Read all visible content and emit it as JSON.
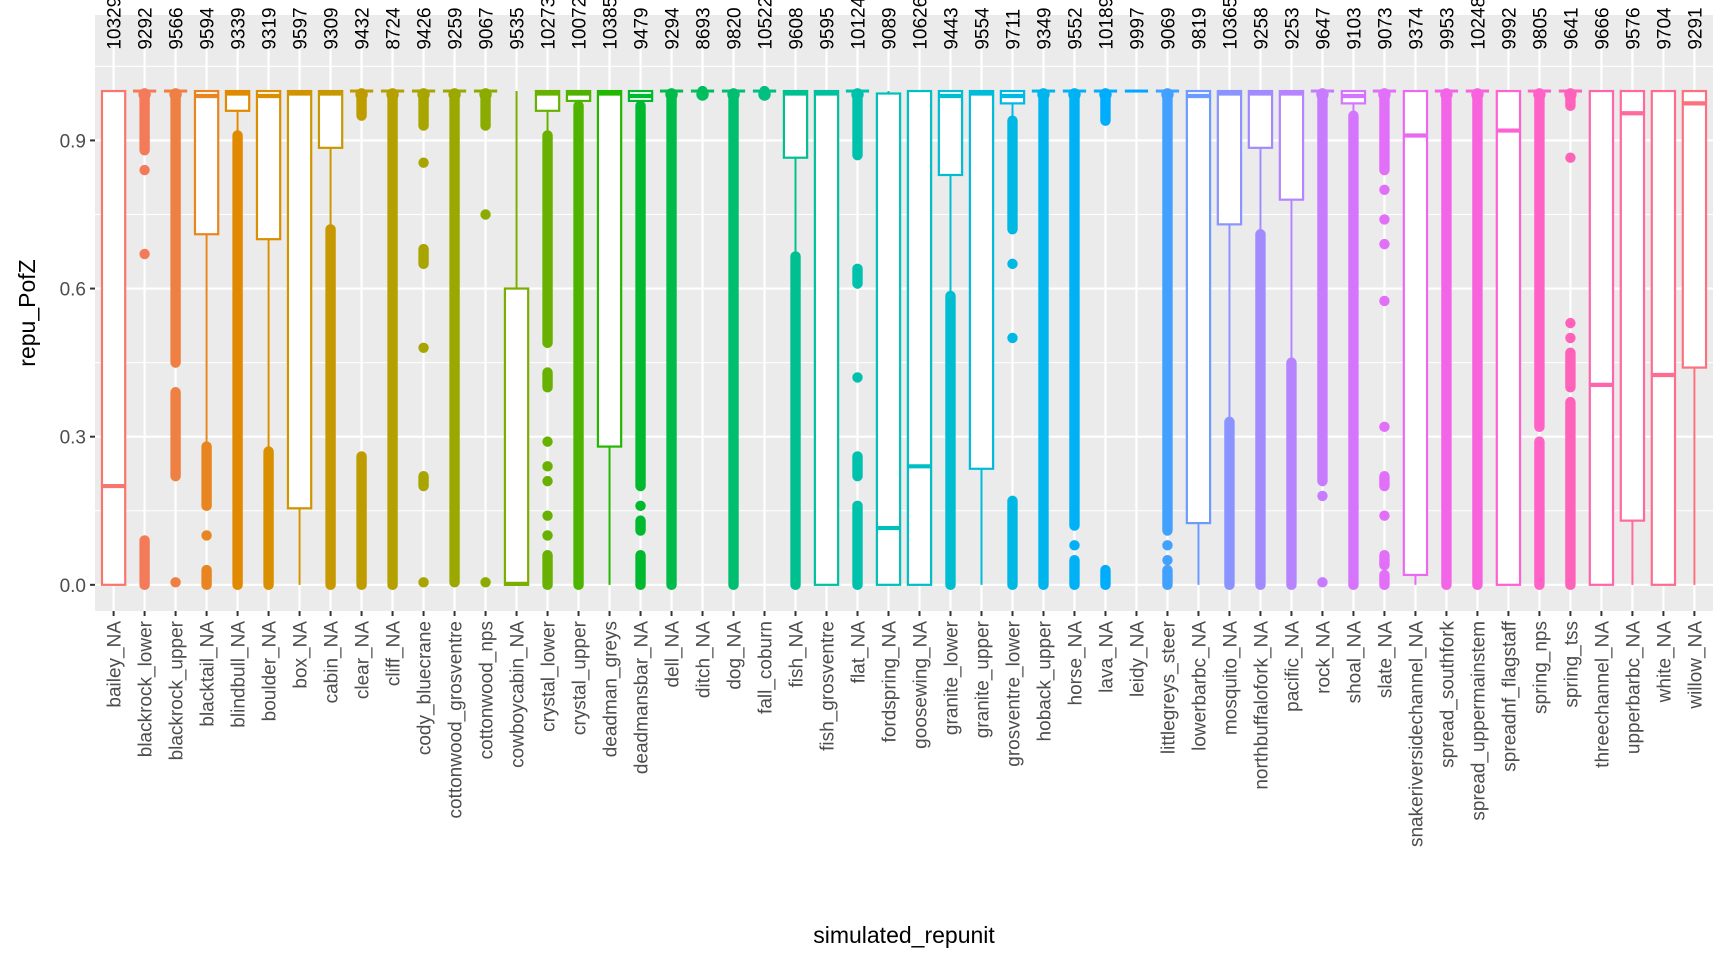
{
  "chart_data": {
    "type": "boxplot",
    "title": "",
    "xlabel": "simulated_repunit",
    "ylabel": "repu_PofZ",
    "ylim": [
      -0.053,
      1.154
    ],
    "yticks": [
      0.0,
      0.3,
      0.6,
      0.9
    ],
    "ytick_labels": [
      "0.0",
      "0.3",
      "0.6",
      "0.9"
    ],
    "y_minor_gridlines": [
      0.15,
      0.45,
      0.75,
      1.05
    ],
    "grid": true,
    "legend": "none",
    "panel_background": "#EBEBEB",
    "gridline_color": "#FFFFFF",
    "count_label_y": 1.1,
    "palette": "ggplot hue (h 15-375, c 100, l 65)",
    "categories": [
      {
        "name": "bailey_NA",
        "n": "10329",
        "box": [
          0.0,
          0.0,
          0.2,
          1.0,
          1.0
        ],
        "bands": [],
        "points": []
      },
      {
        "name": "blackrock_lower",
        "n": "9292",
        "box": [
          0.995,
          0.995,
          1.0,
          1.0,
          1.0
        ],
        "bands": [
          [
            0.88,
            0.995
          ],
          [
            0.0,
            0.09
          ]
        ],
        "points": [
          0.84,
          0.67
        ]
      },
      {
        "name": "blackrock_upper",
        "n": "9566",
        "box": [
          0.995,
          0.995,
          1.0,
          1.0,
          1.0
        ],
        "bands": [
          [
            0.45,
            0.995
          ],
          [
            0.22,
            0.39
          ]
        ],
        "points": [
          0.005
        ]
      },
      {
        "name": "blacktail_NA",
        "n": "9594",
        "box": [
          0.28,
          0.71,
          0.99,
          1.0,
          1.0
        ],
        "bands": [
          [
            0.16,
            0.28
          ],
          [
            0.0,
            0.03
          ]
        ],
        "points": [
          0.1
        ]
      },
      {
        "name": "blindbull_NA",
        "n": "9339",
        "box": [
          0.91,
          0.96,
          0.995,
          1.0,
          1.0
        ],
        "bands": [
          [
            0.0,
            0.91
          ]
        ],
        "points": []
      },
      {
        "name": "boulder_NA",
        "n": "9319",
        "box": [
          0.27,
          0.7,
          0.99,
          1.0,
          1.0
        ],
        "bands": [
          [
            0.0,
            0.27
          ]
        ],
        "points": []
      },
      {
        "name": "box_NA",
        "n": "9597",
        "box": [
          0.0,
          0.155,
          0.995,
          1.0,
          1.0
        ],
        "bands": [],
        "points": []
      },
      {
        "name": "cabin_NA",
        "n": "9309",
        "box": [
          0.72,
          0.885,
          0.995,
          1.0,
          1.0
        ],
        "bands": [
          [
            0.0,
            0.72
          ]
        ],
        "points": []
      },
      {
        "name": "clear_NA",
        "n": "9432",
        "box": [
          0.995,
          0.995,
          1.0,
          1.0,
          1.0
        ],
        "bands": [
          [
            0.95,
            0.995
          ],
          [
            0.0,
            0.26
          ]
        ],
        "points": []
      },
      {
        "name": "cliff_NA",
        "n": "8724",
        "box": [
          0.995,
          0.995,
          1.0,
          1.0,
          1.0
        ],
        "bands": [
          [
            0.0,
            0.995
          ]
        ],
        "points": []
      },
      {
        "name": "cody_bluecrane",
        "n": "9426",
        "box": [
          0.995,
          0.995,
          1.0,
          1.0,
          1.0
        ],
        "bands": [
          [
            0.93,
            0.995
          ],
          [
            0.2,
            0.22
          ],
          [
            0.65,
            0.68
          ]
        ],
        "points": [
          0.855,
          0.48,
          0.005
        ]
      },
      {
        "name": "cottonwood_grosventre",
        "n": "9259",
        "box": [
          0.995,
          0.995,
          1.0,
          1.0,
          1.0
        ],
        "bands": [
          [
            0.005,
            0.995
          ]
        ],
        "points": []
      },
      {
        "name": "cottonwood_nps",
        "n": "9067",
        "box": [
          0.995,
          0.995,
          1.0,
          1.0,
          1.0
        ],
        "bands": [
          [
            0.93,
            0.995
          ]
        ],
        "points": [
          0.75,
          0.005
        ]
      },
      {
        "name": "cowboycabin_NA",
        "n": "9535",
        "box": [
          0.0,
          0.0,
          0.002,
          0.6,
          1.0
        ],
        "bands": [],
        "points": []
      },
      {
        "name": "crystal_lower",
        "n": "10273",
        "box": [
          0.91,
          0.96,
          0.995,
          1.0,
          1.0
        ],
        "bands": [
          [
            0.49,
            0.91
          ],
          [
            0.0,
            0.06
          ],
          [
            0.4,
            0.43
          ]
        ],
        "points": [
          0.29,
          0.14,
          0.21,
          0.24,
          0.1
        ]
      },
      {
        "name": "crystal_upper",
        "n": "10072",
        "box": [
          0.97,
          0.98,
          0.995,
          1.0,
          1.0
        ],
        "bands": [
          [
            0.0,
            0.97
          ]
        ],
        "points": []
      },
      {
        "name": "deadman_greys",
        "n": "10385",
        "box": [
          0.0,
          0.28,
          0.995,
          1.0,
          1.0
        ],
        "bands": [],
        "points": []
      },
      {
        "name": "deadmansbar_NA",
        "n": "9479",
        "box": [
          0.97,
          0.98,
          0.99,
          1.0,
          1.0
        ],
        "bands": [
          [
            0.2,
            0.97
          ],
          [
            0.0,
            0.06
          ],
          [
            0.11,
            0.13
          ]
        ],
        "points": [
          0.16
        ]
      },
      {
        "name": "dell_NA",
        "n": "9294",
        "box": [
          0.995,
          0.995,
          1.0,
          1.0,
          1.0
        ],
        "bands": [
          [
            0.0,
            0.995
          ]
        ],
        "points": []
      },
      {
        "name": "ditch_NA",
        "n": "8693",
        "box": [
          0.995,
          0.995,
          1.0,
          1.0,
          1.0
        ],
        "bands": [
          [
            0.995,
            1.0
          ]
        ],
        "points": []
      },
      {
        "name": "dog_NA",
        "n": "9820",
        "box": [
          0.995,
          0.995,
          1.0,
          1.0,
          1.0
        ],
        "bands": [
          [
            0.0,
            0.995
          ]
        ],
        "points": []
      },
      {
        "name": "fall_coburn",
        "n": "10522",
        "box": [
          0.995,
          0.995,
          1.0,
          1.0,
          1.0
        ],
        "bands": [
          [
            0.995,
            1.0
          ]
        ],
        "points": []
      },
      {
        "name": "fish_NA",
        "n": "9608",
        "box": [
          0.665,
          0.865,
          0.995,
          1.0,
          1.0
        ],
        "bands": [
          [
            0.0,
            0.665
          ]
        ],
        "points": []
      },
      {
        "name": "fish_grosventre",
        "n": "9595",
        "box": [
          0.0,
          0.0,
          0.995,
          1.0,
          1.0
        ],
        "bands": [],
        "points": []
      },
      {
        "name": "flat_NA",
        "n": "10124",
        "box": [
          0.995,
          0.995,
          1.0,
          1.0,
          1.0
        ],
        "bands": [
          [
            0.87,
            0.995
          ],
          [
            0.0,
            0.16
          ],
          [
            0.61,
            0.64
          ],
          [
            0.22,
            0.26
          ]
        ],
        "points": [
          0.42
        ]
      },
      {
        "name": "fordspring_NA",
        "n": "9089",
        "box": [
          0.0,
          0.0,
          0.115,
          0.995,
          1.0
        ],
        "bands": [],
        "points": []
      },
      {
        "name": "goosewing_NA",
        "n": "10626",
        "box": [
          0.0,
          0.0,
          0.24,
          1.0,
          1.0
        ],
        "bands": [],
        "points": []
      },
      {
        "name": "granite_lower",
        "n": "9443",
        "box": [
          0.585,
          0.83,
          0.99,
          1.0,
          1.0
        ],
        "bands": [
          [
            0.0,
            0.585
          ]
        ],
        "points": []
      },
      {
        "name": "granite_upper",
        "n": "9554",
        "box": [
          0.0,
          0.235,
          0.995,
          1.0,
          1.0
        ],
        "bands": [],
        "points": []
      },
      {
        "name": "grosventre_lower",
        "n": "9711",
        "box": [
          0.94,
          0.975,
          0.99,
          1.0,
          1.0
        ],
        "bands": [
          [
            0.72,
            0.94
          ],
          [
            0.0,
            0.17
          ]
        ],
        "points": [
          0.65,
          0.5
        ]
      },
      {
        "name": "hoback_upper",
        "n": "9349",
        "box": [
          0.995,
          0.995,
          1.0,
          1.0,
          1.0
        ],
        "bands": [
          [
            0.0,
            0.995
          ]
        ],
        "points": []
      },
      {
        "name": "horse_NA",
        "n": "9552",
        "box": [
          0.995,
          0.995,
          1.0,
          1.0,
          1.0
        ],
        "bands": [
          [
            0.12,
            0.995
          ],
          [
            0.0,
            0.05
          ]
        ],
        "points": [
          0.08
        ]
      },
      {
        "name": "lava_NA",
        "n": "10189",
        "box": [
          0.995,
          0.995,
          1.0,
          1.0,
          1.0
        ],
        "bands": [
          [
            0.94,
            0.995
          ],
          [
            0.0,
            0.03
          ]
        ],
        "points": []
      },
      {
        "name": "leidy_NA",
        "n": "9997",
        "box": [
          1.0,
          1.0,
          1.0,
          1.0,
          1.0
        ],
        "bands": [],
        "points": []
      },
      {
        "name": "littlegreys_steer",
        "n": "9069",
        "box": [
          0.995,
          0.995,
          1.0,
          1.0,
          1.0
        ],
        "bands": [
          [
            0.11,
            0.995
          ],
          [
            0.0,
            0.03
          ]
        ],
        "points": [
          0.05,
          0.08
        ]
      },
      {
        "name": "lowerbarbc_NA",
        "n": "9819",
        "box": [
          0.0,
          0.125,
          0.99,
          1.0,
          1.0
        ],
        "bands": [],
        "points": []
      },
      {
        "name": "mosquito_NA",
        "n": "10365",
        "box": [
          0.33,
          0.73,
          0.995,
          1.0,
          1.0
        ],
        "bands": [
          [
            0.0,
            0.33
          ]
        ],
        "points": []
      },
      {
        "name": "northbuffalofork_NA",
        "n": "9258",
        "box": [
          0.71,
          0.885,
          0.995,
          1.0,
          1.0
        ],
        "bands": [
          [
            0.0,
            0.71
          ]
        ],
        "points": []
      },
      {
        "name": "pacific_NA",
        "n": "9253",
        "box": [
          0.45,
          0.78,
          0.995,
          1.0,
          1.0
        ],
        "bands": [
          [
            0.0,
            0.45
          ]
        ],
        "points": []
      },
      {
        "name": "rock_NA",
        "n": "9647",
        "box": [
          0.995,
          0.995,
          1.0,
          1.0,
          1.0
        ],
        "bands": [
          [
            0.21,
            0.995
          ]
        ],
        "points": [
          0.18,
          0.005
        ]
      },
      {
        "name": "shoal_NA",
        "n": "9103",
        "box": [
          0.95,
          0.975,
          0.99,
          1.0,
          1.0
        ],
        "bands": [
          [
            0.0,
            0.95
          ]
        ],
        "points": []
      },
      {
        "name": "slate_NA",
        "n": "9073",
        "box": [
          0.995,
          0.995,
          1.0,
          1.0,
          1.0
        ],
        "bands": [
          [
            0.84,
            0.995
          ],
          [
            0.0,
            0.02
          ],
          [
            0.2,
            0.22
          ],
          [
            0.04,
            0.06
          ]
        ],
        "points": [
          0.8,
          0.74,
          0.69,
          0.575,
          0.32,
          0.14
        ]
      },
      {
        "name": "snakeriversidechannel_NA",
        "n": "9374",
        "box": [
          0.0,
          0.02,
          0.91,
          1.0,
          1.0
        ],
        "bands": [],
        "points": []
      },
      {
        "name": "spread_southfork",
        "n": "9953",
        "box": [
          0.995,
          0.995,
          1.0,
          1.0,
          1.0
        ],
        "bands": [
          [
            0.0,
            0.995
          ]
        ],
        "points": []
      },
      {
        "name": "spread_uppermainstem",
        "n": "10248",
        "box": [
          0.995,
          0.995,
          1.0,
          1.0,
          1.0
        ],
        "bands": [
          [
            0.0,
            0.995
          ]
        ],
        "points": []
      },
      {
        "name": "spreadnf_flagstaff",
        "n": "9992",
        "box": [
          0.0,
          0.0,
          0.92,
          1.0,
          1.0
        ],
        "bands": [],
        "points": []
      },
      {
        "name": "spring_nps",
        "n": "9805",
        "box": [
          0.995,
          0.995,
          1.0,
          1.0,
          1.0
        ],
        "bands": [
          [
            0.32,
            0.995
          ],
          [
            0.0,
            0.29
          ]
        ],
        "points": []
      },
      {
        "name": "spring_tss",
        "n": "9641",
        "box": [
          0.995,
          0.995,
          1.0,
          1.0,
          1.0
        ],
        "bands": [
          [
            0.97,
            0.995
          ],
          [
            0.0,
            0.37
          ],
          [
            0.4,
            0.47
          ]
        ],
        "points": [
          0.865,
          0.53,
          0.5
        ]
      },
      {
        "name": "threechannel_NA",
        "n": "9666",
        "box": [
          0.0,
          0.0,
          0.405,
          1.0,
          1.0
        ],
        "bands": [],
        "points": []
      },
      {
        "name": "upperbarbc_NA",
        "n": "9576",
        "box": [
          0.0,
          0.13,
          0.955,
          1.0,
          1.0
        ],
        "bands": [],
        "points": []
      },
      {
        "name": "white_NA",
        "n": "9704",
        "box": [
          0.0,
          0.0,
          0.425,
          1.0,
          1.0
        ],
        "bands": [],
        "points": []
      },
      {
        "name": "willow_NA",
        "n": "9291",
        "box": [
          0.0,
          0.44,
          0.975,
          1.0,
          1.0
        ],
        "bands": [],
        "points": []
      }
    ]
  }
}
